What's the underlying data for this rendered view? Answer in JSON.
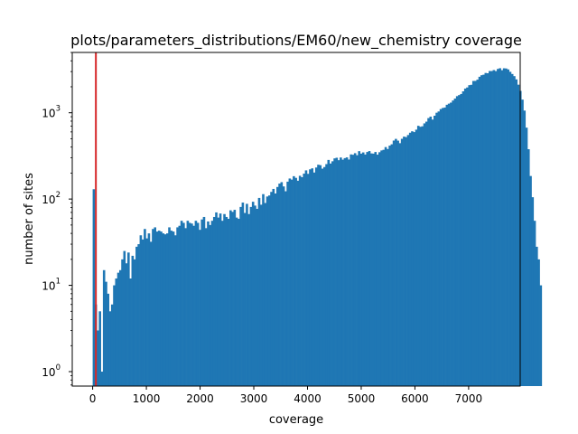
{
  "chart_data": {
    "type": "bar",
    "title": "plots/parameters_distributions/EM60/new_chemistry coverage",
    "xlabel": "coverage",
    "ylabel": "number of sites",
    "x_scale": "linear",
    "y_scale": "log",
    "xlim": [
      -380,
      7960
    ],
    "ylim": [
      0.68,
      5000
    ],
    "grid": false,
    "legend": "none",
    "x_ticks": [
      {
        "value": 0,
        "label": "0"
      },
      {
        "value": 1000,
        "label": "1000"
      },
      {
        "value": 2000,
        "label": "2000"
      },
      {
        "value": 3000,
        "label": "3000"
      },
      {
        "value": 4000,
        "label": "4000"
      },
      {
        "value": 5000,
        "label": "5000"
      },
      {
        "value": 6000,
        "label": "6000"
      },
      {
        "value": 7000,
        "label": "7000"
      }
    ],
    "y_ticks": [
      {
        "value": 1,
        "base": "10",
        "exp": "0"
      },
      {
        "value": 10,
        "base": "10",
        "exp": "1"
      },
      {
        "value": 100,
        "base": "10",
        "exp": "2"
      },
      {
        "value": 1000,
        "base": "10",
        "exp": "3"
      }
    ],
    "bar_color": "#1f77b4",
    "bin_start": 0,
    "bin_width": 38,
    "counts": [
      130,
      6,
      3,
      5,
      1,
      15,
      11,
      8,
      5,
      6,
      10,
      12,
      14,
      15,
      20,
      25,
      18,
      24,
      12,
      22,
      20,
      28,
      30,
      38,
      34,
      45,
      35,
      40,
      32,
      45,
      47,
      42,
      43,
      42,
      40,
      39,
      40,
      47,
      43,
      42,
      38,
      47,
      49,
      56,
      53,
      46,
      56,
      53,
      52,
      49,
      56,
      53,
      44,
      58,
      62,
      46,
      55,
      50,
      56,
      62,
      70,
      61,
      68,
      56,
      67,
      62,
      59,
      74,
      71,
      75,
      61,
      59,
      81,
      91,
      69,
      88,
      67,
      81,
      93,
      84,
      77,
      103,
      86,
      114,
      90,
      107,
      110,
      121,
      131,
      116,
      138,
      151,
      157,
      140,
      123,
      159,
      173,
      168,
      184,
      176,
      163,
      186,
      179,
      197,
      215,
      196,
      221,
      227,
      203,
      232,
      250,
      247,
      225,
      235,
      254,
      284,
      258,
      274,
      296,
      301,
      282,
      303,
      286,
      298,
      304,
      287,
      329,
      326,
      340,
      322,
      359,
      336,
      347,
      328,
      351,
      360,
      338,
      336,
      351,
      327,
      349,
      366,
      372,
      400,
      380,
      416,
      431,
      476,
      498,
      475,
      444,
      499,
      529,
      522,
      552,
      587,
      610,
      597,
      637,
      706,
      688,
      697,
      753,
      789,
      867,
      902,
      834,
      924,
      1001,
      1035,
      1104,
      1136,
      1150,
      1237,
      1275,
      1311,
      1387,
      1461,
      1557,
      1602,
      1651,
      1771,
      1908,
      1964,
      2089,
      2109,
      2336,
      2341,
      2420,
      2613,
      2722,
      2761,
      2892,
      2869,
      3045,
      3044,
      3123,
      3040,
      3222,
      3283,
      3112,
      3276,
      3260,
      3180,
      2983,
      2814,
      2658,
      2437,
      2115,
      1791,
      1420,
      1060,
      672,
      378,
      185,
      105,
      56,
      28,
      20,
      10
    ],
    "vlines": [
      {
        "x": 60,
        "color": "#d62728",
        "label": ""
      }
    ]
  }
}
